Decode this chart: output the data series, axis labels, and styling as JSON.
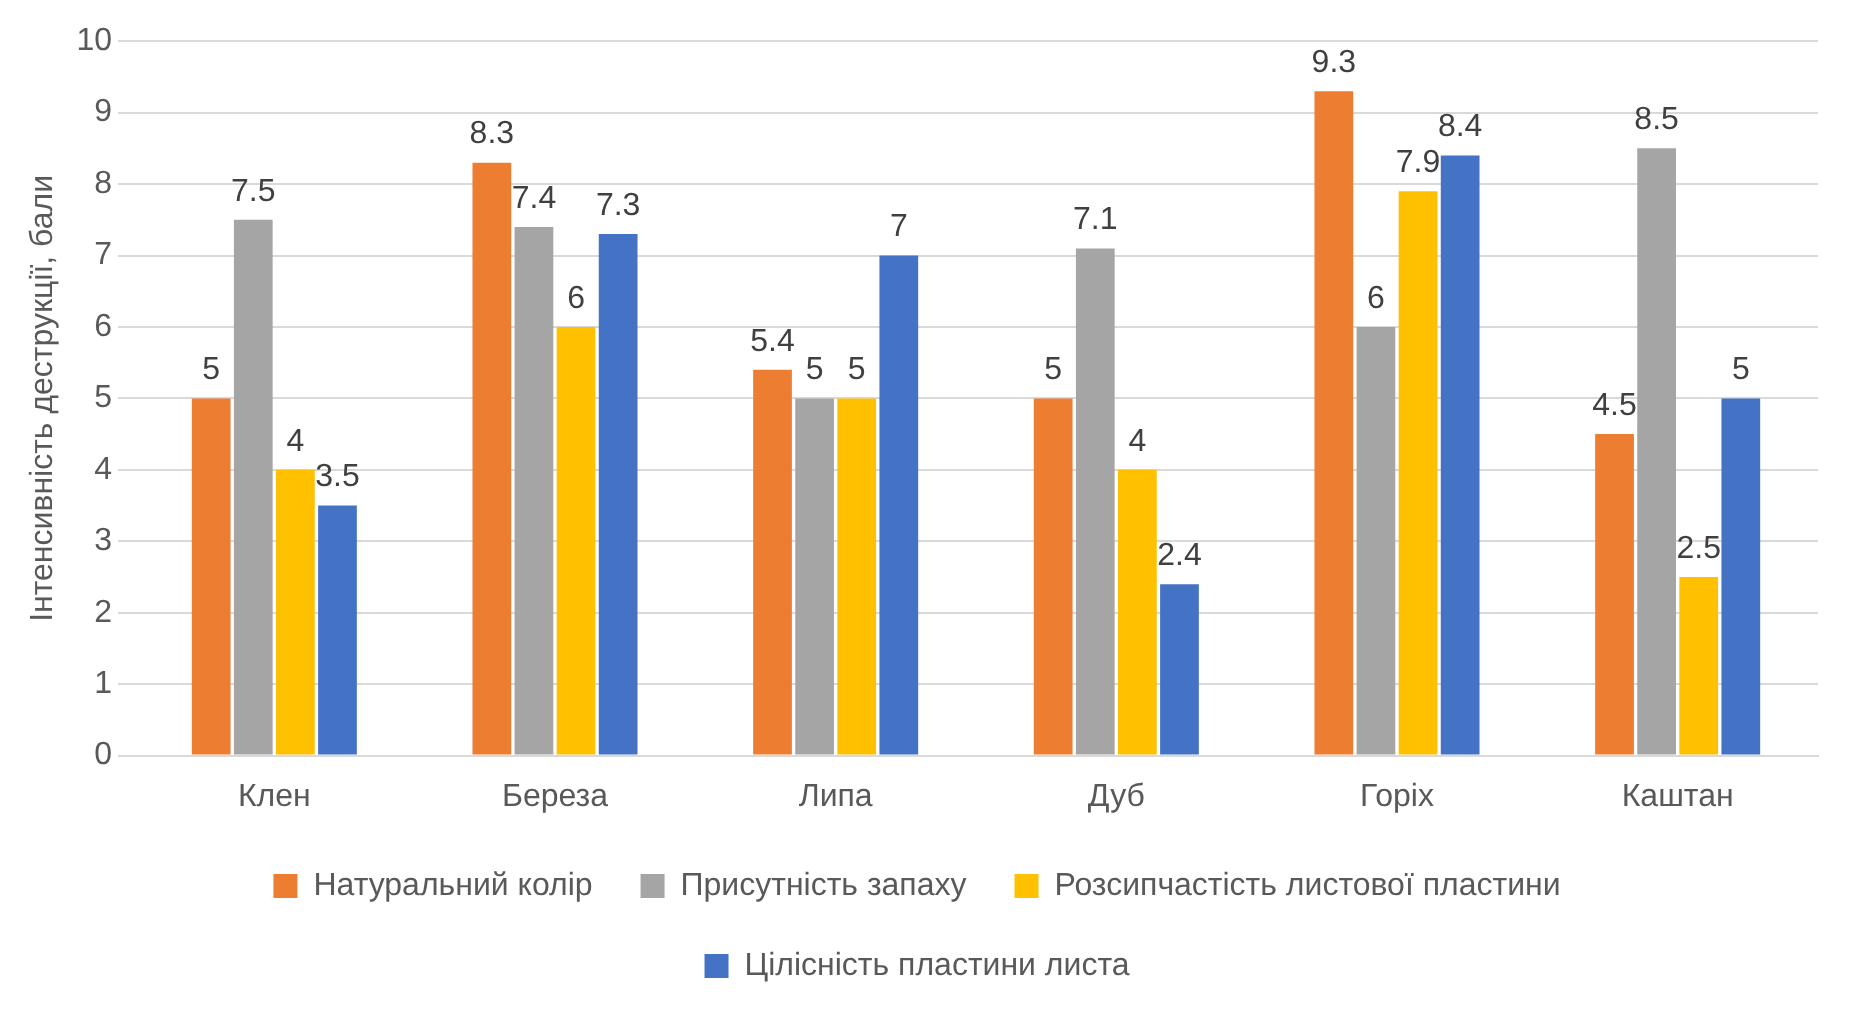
{
  "chart_data": {
    "type": "bar",
    "ylabel": "Інтенсивність деструкції, бали",
    "categories": [
      "Клен",
      "Береза",
      "Липа",
      "Дуб",
      "Горіх",
      "Каштан"
    ],
    "series": [
      {
        "name": "Натуральний колір",
        "color": "#ed7d31",
        "values": [
          5,
          8.3,
          5.4,
          5,
          9.3,
          4.5
        ]
      },
      {
        "name": "Присутність запаху",
        "color": "#a5a5a5",
        "values": [
          7.5,
          7.4,
          5,
          7.1,
          6,
          8.5
        ]
      },
      {
        "name": "Розсипчастість листової пластини",
        "color": "#ffc000",
        "values": [
          4,
          6,
          5,
          4,
          7.9,
          2.5
        ]
      },
      {
        "name": "Цілісність пластини листа",
        "color": "#4472c4",
        "values": [
          3.5,
          7.3,
          7,
          2.4,
          8.4,
          5
        ]
      }
    ],
    "ylim": [
      0,
      10
    ],
    "yticks": [
      0,
      1,
      2,
      3,
      4,
      5,
      6,
      7,
      8,
      9,
      10
    ],
    "grid": "y",
    "legend": "bottom",
    "data_labels": true
  }
}
